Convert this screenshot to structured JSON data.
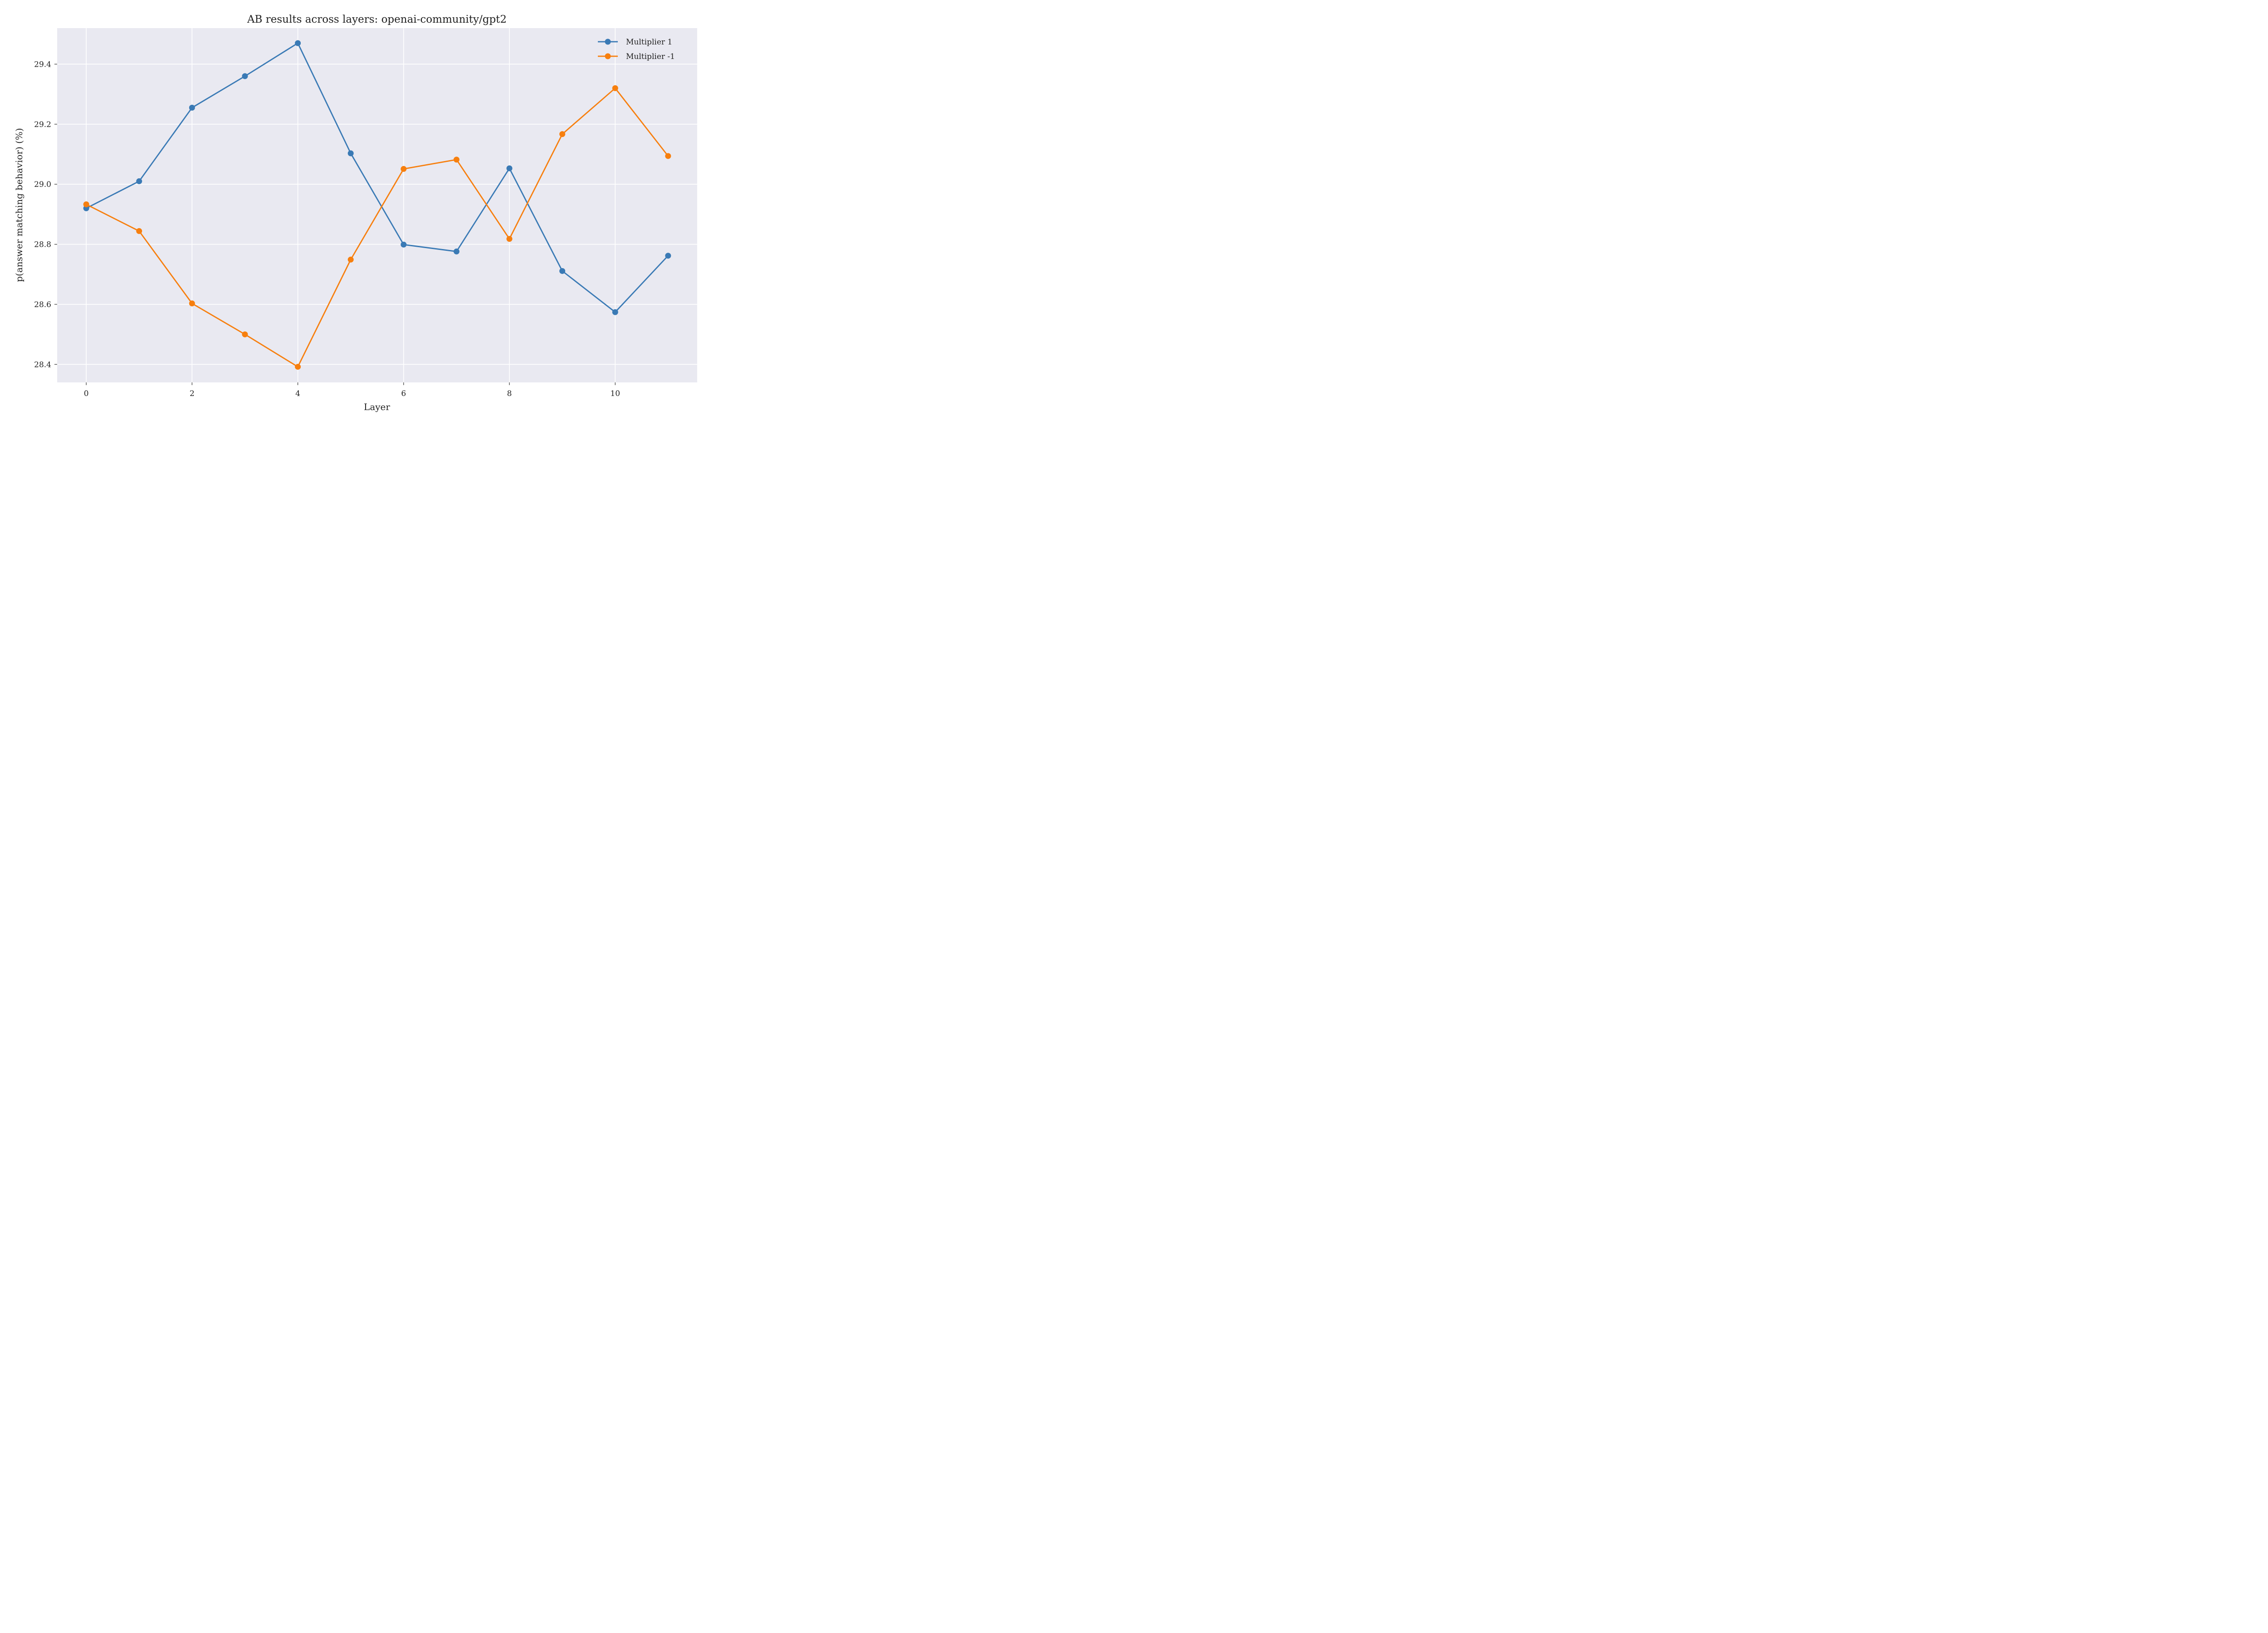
{
  "chart_data": {
    "type": "line",
    "title": "AB results across layers: openai-community/gpt2",
    "xlabel": "Layer",
    "ylabel": "p(answer matching behavior) (%)",
    "x": [
      0,
      1,
      2,
      3,
      4,
      5,
      6,
      7,
      8,
      9,
      10,
      11
    ],
    "xlim": [
      -0.55,
      11.55
    ],
    "ylim": [
      28.34,
      29.52
    ],
    "xticks": [
      0,
      2,
      4,
      6,
      8,
      10
    ],
    "xtick_labels": [
      "0",
      "2",
      "4",
      "6",
      "8",
      "10"
    ],
    "yticks": [
      28.4,
      28.6,
      28.8,
      29.0,
      29.2,
      29.4
    ],
    "ytick_labels": [
      "28.4",
      "28.6",
      "28.8",
      "29.0",
      "29.2",
      "29.4"
    ],
    "grid": true,
    "background": "#e9e9f1",
    "legend_position": "top-right",
    "series": [
      {
        "name": "Multiplier 1",
        "color": "#3a7ab5",
        "values": [
          28.92,
          29.01,
          29.255,
          29.36,
          29.47,
          29.103,
          28.799,
          28.776,
          29.053,
          28.711,
          28.574,
          28.762
        ]
      },
      {
        "name": "Multiplier -1",
        "color": "#f77f0e",
        "values": [
          28.933,
          28.844,
          28.603,
          28.5,
          28.392,
          28.749,
          29.051,
          29.082,
          28.818,
          29.167,
          29.32,
          29.094
        ]
      }
    ]
  }
}
